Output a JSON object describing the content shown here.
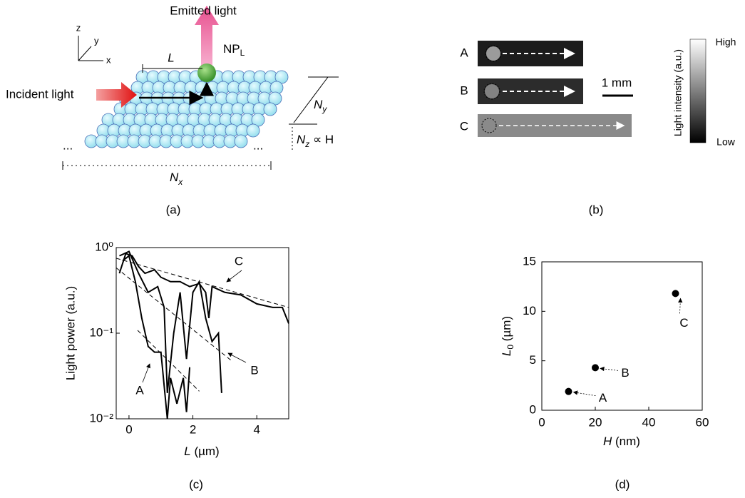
{
  "panel_labels": [
    "(a)",
    "(b)",
    "(c)",
    "(d)"
  ],
  "diagram": {
    "axes": [
      "z",
      "y",
      "x"
    ],
    "emitted": "Emitted light",
    "incident": "Incident light",
    "np": {
      "main": "NP",
      "sub": "L"
    },
    "distance": "L",
    "ny": {
      "main": "N",
      "sub": "y"
    },
    "nz": {
      "main": "N",
      "sub": "z",
      "rest": " ∝ H"
    },
    "nx": {
      "main": "N",
      "sub": "x"
    },
    "ellipsis": "..."
  },
  "images": {
    "rows": [
      "A",
      "B",
      "C"
    ],
    "scale": "1 mm",
    "colorbar": {
      "title": "Light intensity (a.u.)",
      "high": "High",
      "low": "Low"
    }
  },
  "chart_data": [
    {
      "type": "line",
      "log_y": true,
      "xlabel": {
        "main": "L",
        "rest": " (µm)"
      },
      "ylabel": "Light power (a.u.)",
      "xlim": [
        -0.4,
        5
      ],
      "xticks": [
        0,
        2,
        4
      ],
      "ylim": [
        0.01,
        1
      ],
      "yticks": [
        {
          "value": 0.01,
          "label": "10⁻²"
        },
        {
          "value": 0.1,
          "label": "10⁻¹"
        },
        {
          "value": 1,
          "label": "10⁰"
        }
      ],
      "color": "#000000",
      "series": [
        {
          "name": "A",
          "x": [
            -0.2,
            0,
            0.2,
            0.4,
            0.6,
            0.8,
            1.0,
            1.2,
            1.3,
            1.5,
            1.7,
            1.8,
            1.9
          ],
          "values": [
            0.7,
            0.8,
            0.4,
            0.15,
            0.07,
            0.06,
            0.06,
            0.01,
            0.03,
            0.015,
            0.03,
            0.012,
            0.04
          ]
        },
        {
          "name": "B",
          "x": [
            -0.3,
            0,
            0.3,
            0.6,
            0.9,
            1.1,
            1.2,
            1.4,
            1.6,
            1.8,
            2.0,
            2.2,
            2.4,
            2.6,
            2.8,
            2.9
          ],
          "values": [
            0.8,
            0.9,
            0.5,
            0.3,
            0.35,
            0.2,
            0.02,
            0.1,
            0.3,
            0.05,
            0.3,
            0.4,
            0.15,
            0.08,
            0.1,
            0.02
          ]
        },
        {
          "name": "C",
          "x": [
            -0.3,
            -0.1,
            0.1,
            0.3,
            0.5,
            0.8,
            1.0,
            1.3,
            1.6,
            1.9,
            2.2,
            2.4,
            2.5,
            2.6,
            3.0,
            3.5,
            4.0,
            4.5,
            4.8,
            5.0
          ],
          "values": [
            0.5,
            0.85,
            0.8,
            0.6,
            0.5,
            0.55,
            0.45,
            0.4,
            0.4,
            0.35,
            0.38,
            0.3,
            0.15,
            0.35,
            0.3,
            0.28,
            0.22,
            0.2,
            0.2,
            0.13
          ]
        }
      ],
      "fits": [
        {
          "x": [
            0.27,
            2.2
          ],
          "values": [
            0.108,
            0.021
          ]
        },
        {
          "x": [
            -0.4,
            3.2
          ],
          "values": [
            0.58,
            0.048
          ]
        },
        {
          "x": [
            -0.4,
            5
          ],
          "values": [
            0.75,
            0.2
          ]
        }
      ]
    },
    {
      "type": "scatter",
      "xlabel": {
        "main": "H",
        "rest": " (nm)"
      },
      "ylabel": {
        "main": "L",
        "sub": "0",
        "rest": " (µm)"
      },
      "xlim": [
        0,
        60
      ],
      "xticks": [
        0,
        20,
        40,
        60
      ],
      "ylim": [
        0,
        15
      ],
      "yticks": [
        0,
        5,
        10,
        15
      ],
      "color": "#000000",
      "labels": [
        "A",
        "B",
        "C"
      ],
      "x": [
        10,
        20,
        50
      ],
      "values": [
        1.9,
        4.3,
        11.8
      ]
    }
  ]
}
